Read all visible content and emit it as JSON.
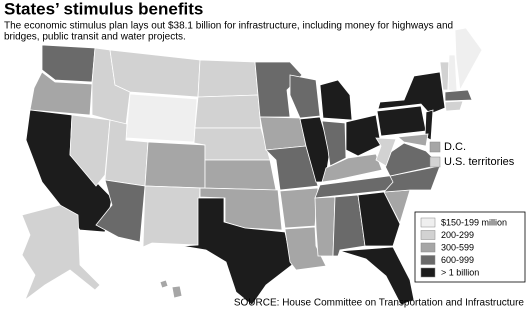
{
  "header": {
    "title": "States’ stimulus benefits",
    "subtitle": [
      "The economic stimulus plan lays out $38.1 billion for infrastructure, including money for highways and",
      "bridges, public transit and water projects."
    ]
  },
  "extras": [
    {
      "label": "D.C.",
      "category": 2
    },
    {
      "label": "U.S. territories",
      "category": 1
    }
  ],
  "legend": [
    {
      "label": "$150-199 million",
      "color": "#efefef"
    },
    {
      "label": "200-299",
      "color": "#d2d2d2"
    },
    {
      "label": "300-599",
      "color": "#a6a6a6"
    },
    {
      "label": "600-999",
      "color": "#6a6a6a"
    },
    {
      "label": "> 1 billion",
      "color": "#1c1c1c"
    }
  ],
  "source": "SOURCE: House Committee on Transportation and Infrastructure"
}
